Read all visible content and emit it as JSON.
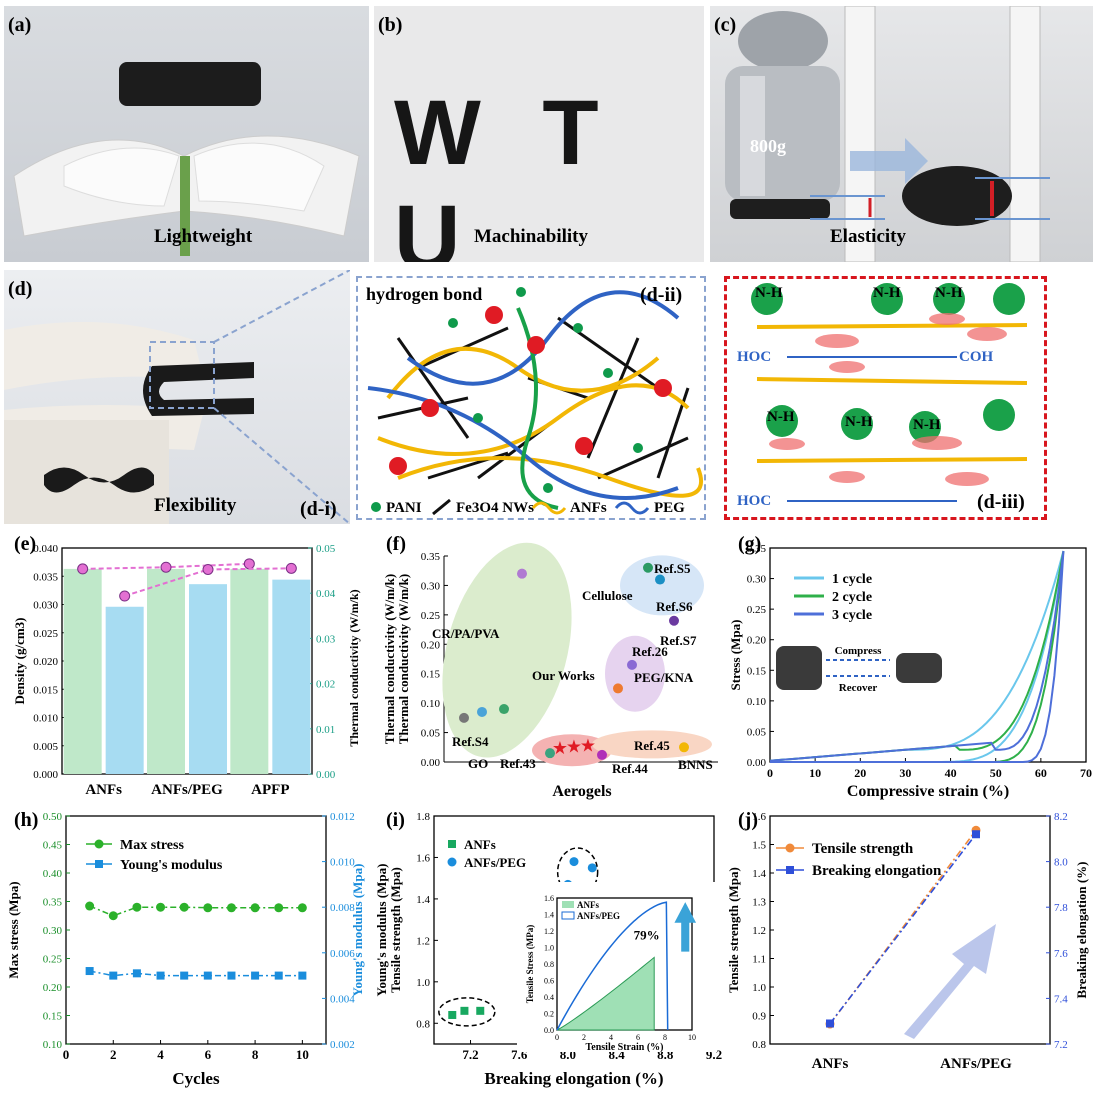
{
  "photos": {
    "a": {
      "label": "(a)",
      "caption": "Lightweight"
    },
    "b": {
      "label": "(b)",
      "caption": "Machinability",
      "letters": "W T U"
    },
    "c": {
      "label": "(c)",
      "caption": "Elasticity",
      "weight": "800g"
    },
    "d": {
      "label": "(d)",
      "caption": "Flexibility",
      "sub": "(d-i)"
    }
  },
  "schematic": {
    "label": "(d-ii)",
    "title": "hydrogen bond",
    "legend": [
      "PANI",
      "Fe3O4 NWs",
      "ANFs",
      "PEG"
    ]
  },
  "molecular": {
    "label": "(d-iii)",
    "nh": "N-H",
    "coh": "COH",
    "hoc": "HOC"
  },
  "chart_data": [
    {
      "panel": "(e)",
      "type": "bar",
      "categories": [
        "ANFs",
        "ANFs/PEG",
        "APFP"
      ],
      "series": [
        {
          "name": "Density",
          "axis": "left",
          "values": [
            0.0363,
            0.0363,
            0.0363
          ]
        },
        {
          "name": "Thermal conductivity",
          "axis": "right",
          "values": [
            0.037,
            0.042,
            0.043
          ]
        },
        {
          "name": "Density marker",
          "axis": "left",
          "values": [
            0.0363,
            0.0366,
            0.0372
          ]
        },
        {
          "name": "Thermal marker",
          "axis": "left",
          "values": [
            0.0315,
            0.0362,
            0.0364
          ]
        }
      ],
      "ylabel": "Density (g/cm3)",
      "y2label": "Thermal conductivity (W/m/k)",
      "ylim": [
        0,
        0.04
      ],
      "y2lim": [
        0,
        0.05
      ],
      "yticks": [
        "0.000",
        "0.005",
        "0.010",
        "0.015",
        "0.020",
        "0.025",
        "0.030",
        "0.035",
        "0.040"
      ],
      "y2ticks": [
        "0.00",
        "0.01",
        "0.02",
        "0.03",
        "0.04",
        "0.05"
      ]
    },
    {
      "panel": "(f)",
      "type": "scatter",
      "xlabel": "Aerogels",
      "ylabel": "Thermal conductivity (W/m/k)",
      "ylim": [
        0,
        0.35
      ],
      "yticks": [
        "0.00",
        "0.05",
        "0.10",
        "0.15",
        "0.20",
        "0.25",
        "0.30",
        "0.35"
      ],
      "groups": [
        "CR/PA/PVA",
        "Cellulose",
        "PEG/KNA",
        "Our Works",
        "BNNS"
      ],
      "labels": [
        "Ref.S5",
        "Ref.S6",
        "Ref.S7",
        "Ref.26",
        "Ref.S4",
        "Ref.43",
        "Ref.44",
        "Ref.45",
        "GO"
      ]
    },
    {
      "panel": "(g)",
      "type": "line",
      "xlabel": "Compressive strain (%)",
      "ylabel": "Stress (Mpa)",
      "xlim": [
        0,
        70
      ],
      "ylim": [
        0,
        0.35
      ],
      "xticks": [
        "0",
        "10",
        "20",
        "30",
        "40",
        "50",
        "60",
        "70"
      ],
      "yticks": [
        "0.00",
        "0.05",
        "0.10",
        "0.15",
        "0.20",
        "0.25",
        "0.30",
        "0.35"
      ],
      "series": [
        "1 cycle",
        "2 cycle",
        "3 cycle"
      ],
      "inset": [
        "Compress",
        "Recover"
      ]
    },
    {
      "panel": "(h)",
      "type": "line",
      "xlabel": "Cycles",
      "ylabel": "Max stress (Mpa)",
      "y2label": "Young's modulus (Mpa)",
      "x": [
        1,
        2,
        3,
        4,
        5,
        6,
        7,
        8,
        9,
        10
      ],
      "series": [
        {
          "name": "Max stress",
          "values": [
            0.342,
            0.325,
            0.34,
            0.34,
            0.34,
            0.339,
            0.339,
            0.339,
            0.339,
            0.339
          ]
        },
        {
          "name": "Young's modulus",
          "axis": "right",
          "values": [
            0.0052,
            0.005,
            0.0051,
            0.005,
            0.005,
            0.005,
            0.005,
            0.005,
            0.005,
            0.005
          ]
        }
      ],
      "xlim": [
        0,
        11
      ],
      "ylim": [
        0.1,
        0.5
      ],
      "y2lim": [
        0.002,
        0.012
      ],
      "xticks": [
        "0",
        "2",
        "4",
        "6",
        "8",
        "10"
      ],
      "yticks": [
        "0.10",
        "0.15",
        "0.20",
        "0.25",
        "0.30",
        "0.35",
        "0.40",
        "0.45",
        "0.50"
      ],
      "y2ticks": [
        "0.002",
        "0.004",
        "0.006",
        "0.008",
        "0.010",
        "0.012"
      ]
    },
    {
      "panel": "(i)",
      "type": "scatter",
      "xlabel": "Breaking elongation (%)",
      "ylabel": "Tensile strength (Mpa)",
      "ylabel2": "Young's modulus (Mpa)",
      "series": [
        {
          "name": "ANFs",
          "x": [
            7.05,
            7.15,
            7.28
          ],
          "y": [
            0.84,
            0.86,
            0.86
          ]
        },
        {
          "name": "ANFs/PEG",
          "x": [
            8.0,
            8.05,
            8.2
          ],
          "y": [
            1.47,
            1.58,
            1.55
          ]
        }
      ],
      "xlim": [
        6.9,
        9.2
      ],
      "ylim": [
        0.7,
        1.8
      ],
      "xticks": [
        "7.2",
        "7.6",
        "8.0",
        "8.4",
        "8.8",
        "9.2"
      ],
      "yticks": [
        "0.8",
        "1.0",
        "1.2",
        "1.4",
        "1.6",
        "1.8"
      ],
      "inset": {
        "xlabel": "Tensile Strain (%)",
        "ylabel": "Tensile Stress (MPa)",
        "legend": [
          "ANFs",
          "ANFs/PEG"
        ],
        "annotation": "79%",
        "xticks": [
          "0",
          "2",
          "4",
          "6",
          "8",
          "10"
        ],
        "yticks": [
          "0.0",
          "0.2",
          "0.4",
          "0.6",
          "0.8",
          "1.0",
          "1.2",
          "1.4",
          "1.6"
        ]
      }
    },
    {
      "panel": "(j)",
      "type": "line",
      "categories": [
        "ANFs",
        "ANFs/PEG"
      ],
      "series": [
        {
          "name": "Tensile strength",
          "axis": "left",
          "values": [
            0.87,
            1.55
          ]
        },
        {
          "name": "Breaking elongation",
          "axis": "right",
          "values": [
            7.29,
            8.12
          ]
        }
      ],
      "ylabel": "Tensile strength (Mpa)",
      "y2label": "Breaking elongation (%)",
      "ylim": [
        0.8,
        1.6
      ],
      "y2lim": [
        7.2,
        8.2
      ],
      "yticks": [
        "0.8",
        "0.9",
        "1.0",
        "1.1",
        "1.2",
        "1.3",
        "1.4",
        "1.5",
        "1.6"
      ],
      "y2ticks": [
        "7.2",
        "7.4",
        "7.6",
        "7.8",
        "8.0",
        "8.2"
      ]
    }
  ]
}
